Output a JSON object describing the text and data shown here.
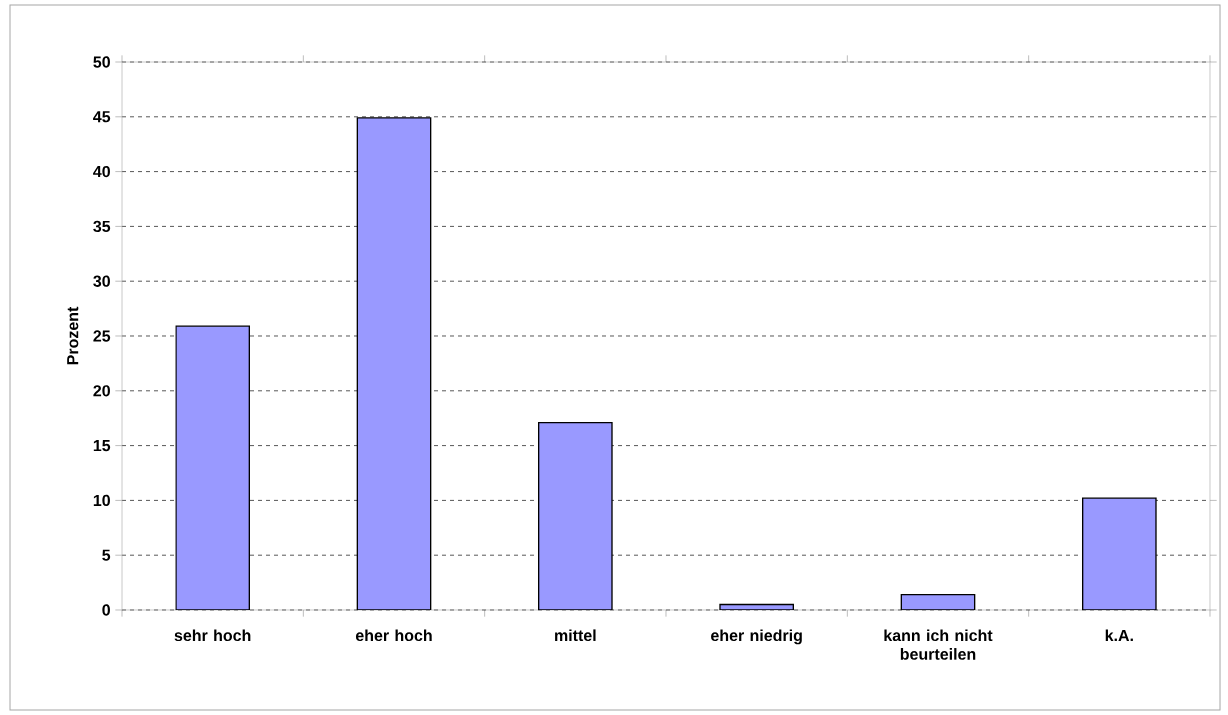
{
  "chart_data": {
    "type": "bar",
    "ylabel": "Prozent",
    "categories": [
      "sehr hoch",
      "eher hoch",
      "mittel",
      "eher niedrig",
      "kann ich nicht beurteilen",
      "k.A."
    ],
    "values": [
      25.9,
      44.9,
      17.1,
      0.5,
      1.4,
      10.2
    ],
    "color": "#9999ff",
    "ylim": [
      0,
      50
    ],
    "yticks": [
      0,
      5,
      10,
      15,
      20,
      25,
      30,
      35,
      40,
      45,
      50
    ],
    "grid": "y"
  }
}
